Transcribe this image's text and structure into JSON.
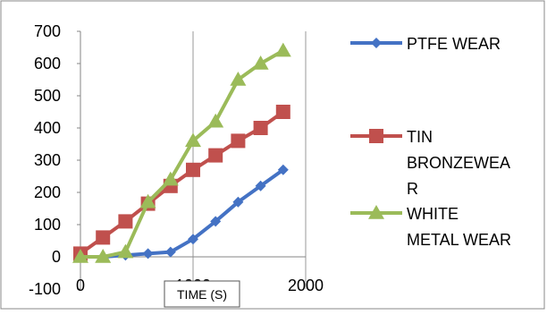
{
  "chart_data": {
    "type": "line",
    "title": "",
    "xlabel": "TIME (S)",
    "ylabel": "",
    "xlim": [
      0,
      2000
    ],
    "ylim": [
      -100,
      700
    ],
    "xticks": [
      0,
      1000,
      2000
    ],
    "xtick_labels": [
      "0",
      "1000",
      "2000"
    ],
    "yticks": [
      -100,
      0,
      100,
      200,
      300,
      400,
      500,
      600,
      700
    ],
    "ytick_labels": [
      "-100",
      "0",
      "100",
      "200",
      "300",
      "400",
      "500",
      "600",
      "700"
    ],
    "grid": "vertical",
    "legend_position": "right",
    "series": [
      {
        "name": "PTFE WEAR",
        "legend_lines": [
          "PTFE WEAR"
        ],
        "color": "#4472C4",
        "marker": "diamond",
        "x": [
          0,
          200,
          400,
          600,
          800,
          1000,
          1200,
          1400,
          1600,
          1800
        ],
        "y": [
          0,
          0,
          5,
          10,
          15,
          55,
          110,
          170,
          220,
          270
        ]
      },
      {
        "name": "TIN BRONZEWEAR",
        "legend_lines": [
          "TIN",
          "BRONZEWEA",
          "R"
        ],
        "color": "#C0504D",
        "marker": "square",
        "x": [
          0,
          200,
          400,
          600,
          800,
          1000,
          1200,
          1400,
          1600,
          1800
        ],
        "y": [
          10,
          60,
          110,
          165,
          220,
          270,
          315,
          360,
          400,
          450
        ]
      },
      {
        "name": "WHITE METAL WEAR",
        "legend_lines": [
          "WHITE",
          "METAL WEAR"
        ],
        "color": "#9BBB59",
        "marker": "triangle",
        "x": [
          0,
          200,
          400,
          600,
          800,
          1000,
          1200,
          1400,
          1600,
          1800
        ],
        "y": [
          0,
          0,
          15,
          170,
          240,
          360,
          420,
          550,
          600,
          640
        ]
      }
    ]
  }
}
